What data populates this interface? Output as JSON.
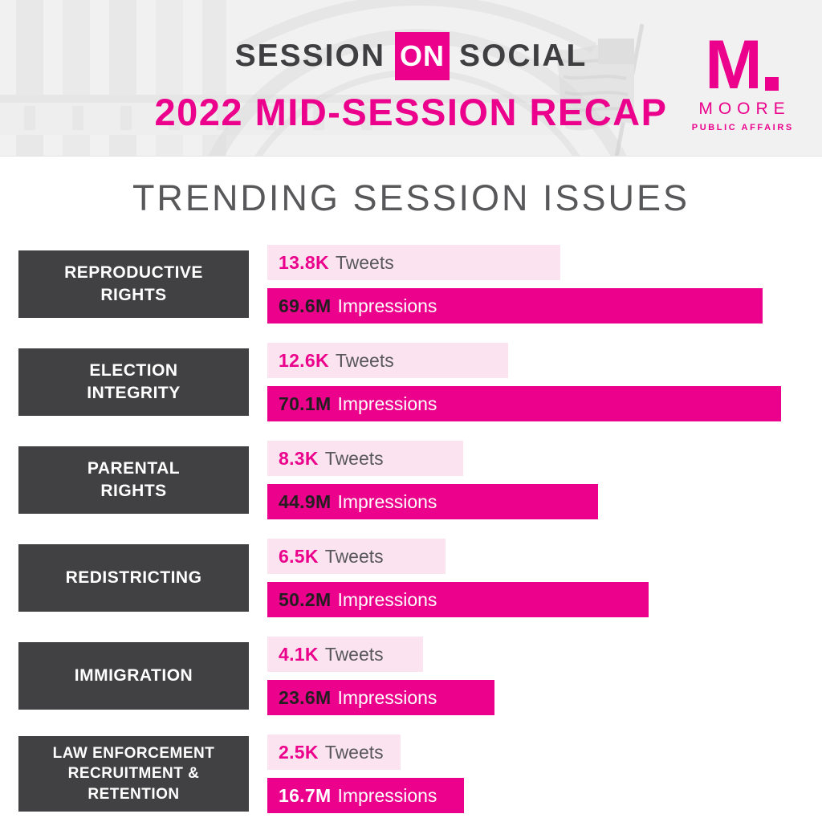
{
  "header": {
    "brand": {
      "word1": "SESSION",
      "word2": "ON",
      "word3": "SOCIAL"
    },
    "subtitle": "2022 MID-SESSION RECAP",
    "logo": {
      "mark": "M",
      "name": "MOORE",
      "tagline": "PUBLIC AFFAIRS"
    }
  },
  "title": "TRENDING SESSION ISSUES",
  "colors": {
    "magenta": "#eb018c",
    "light_pink": "#fbe4ef",
    "dark_gray": "#414042",
    "text_gray": "#58585a",
    "value_dark": "#231f20",
    "header_bg": "#f1f1f1"
  },
  "chart_data": {
    "type": "bar",
    "orientation": "horizontal",
    "title": "TRENDING SESSION ISSUES",
    "legend_position": "none",
    "grid": false,
    "series_labels": {
      "tweets": "Tweets",
      "impressions": "Impressions"
    },
    "categories": [
      "REPRODUCTIVE RIGHTS",
      "ELECTION INTEGRITY",
      "PARENTAL RIGHTS",
      "REDISTRICTING",
      "IMMIGRATION",
      "LAW ENFORCEMENT RECRUITMENT & RETENTION"
    ],
    "rows": [
      {
        "label_lines": [
          "REPRODUCTIVE",
          "RIGHTS"
        ],
        "tweets_value": "13.8K",
        "tweets_numeric": 13800,
        "tweets_pct": 57.0,
        "impressions_value": "69.6M",
        "impressions_numeric": 69600000,
        "impressions_pct": 96.4,
        "impressions_value_color": "dark"
      },
      {
        "label_lines": [
          "ELECTION",
          "INTEGRITY"
        ],
        "tweets_value": "12.6K",
        "tweets_numeric": 12600,
        "tweets_pct": 46.9,
        "impressions_value": "70.1M",
        "impressions_numeric": 70100000,
        "impressions_pct": 100,
        "impressions_value_color": "dark"
      },
      {
        "label_lines": [
          "PARENTAL",
          "RIGHTS"
        ],
        "tweets_value": "8.3K",
        "tweets_numeric": 8300,
        "tweets_pct": 38.1,
        "impressions_value": "44.9M",
        "impressions_numeric": 44900000,
        "impressions_pct": 64.4,
        "impressions_value_color": "dark"
      },
      {
        "label_lines": [
          "REDISTRICTING"
        ],
        "tweets_value": "6.5K",
        "tweets_numeric": 6500,
        "tweets_pct": 34.7,
        "impressions_value": "50.2M",
        "impressions_numeric": 50200000,
        "impressions_pct": 74.2,
        "impressions_value_color": "dark"
      },
      {
        "label_lines": [
          "IMMIGRATION"
        ],
        "tweets_value": "4.1K",
        "tweets_numeric": 4100,
        "tweets_pct": 30.3,
        "impressions_value": "23.6M",
        "impressions_numeric": 23600000,
        "impressions_pct": 44.2,
        "impressions_value_color": "dark"
      },
      {
        "label_lines": [
          "LAW ENFORCEMENT",
          "RECRUITMENT &",
          "RETENTION"
        ],
        "tweets_value": "2.5K",
        "tweets_numeric": 2500,
        "tweets_pct": 25.9,
        "impressions_value": "16.7M",
        "impressions_numeric": 16700000,
        "impressions_pct": 38.3,
        "impressions_value_color": "white"
      }
    ]
  }
}
